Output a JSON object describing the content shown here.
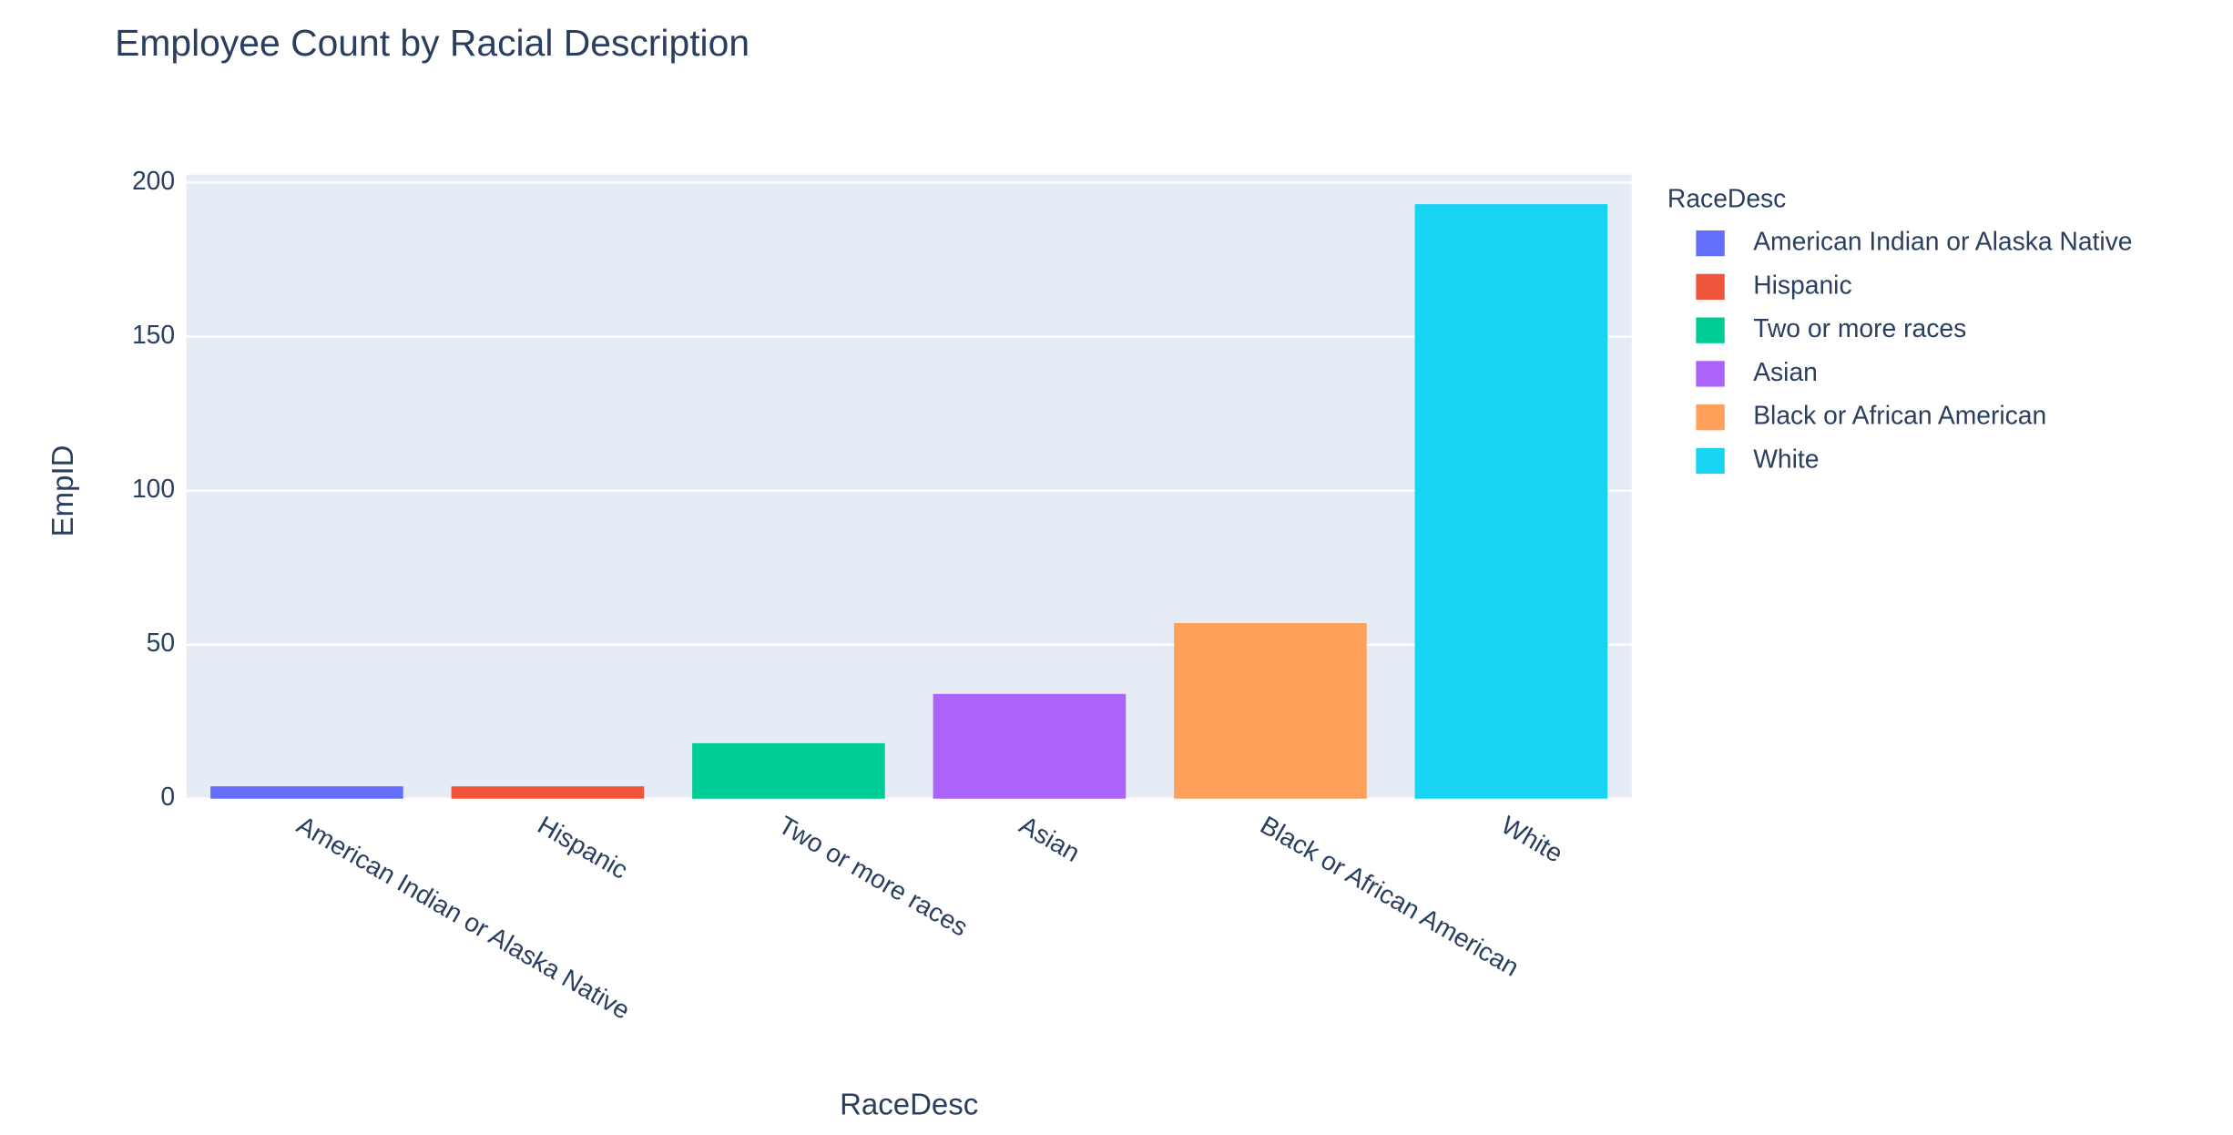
{
  "chart_data": {
    "type": "bar",
    "title": "Employee Count by Racial Description",
    "xlabel": "RaceDesc",
    "ylabel": "EmpID",
    "legend_title": "RaceDesc",
    "categories": [
      "American Indian or Alaska Native",
      "Hispanic",
      "Two or more races",
      "Asian",
      "Black or African American",
      "White"
    ],
    "values": [
      4,
      4,
      18,
      34,
      57,
      193
    ],
    "colors": [
      "#636efa",
      "#ef553b",
      "#00cc96",
      "#ab63fa",
      "#ffa15a",
      "#19d3f3"
    ],
    "ylim": [
      0,
      202.6
    ],
    "yticks": [
      0,
      50,
      100,
      150,
      200
    ],
    "grid": true,
    "legend": "right"
  }
}
